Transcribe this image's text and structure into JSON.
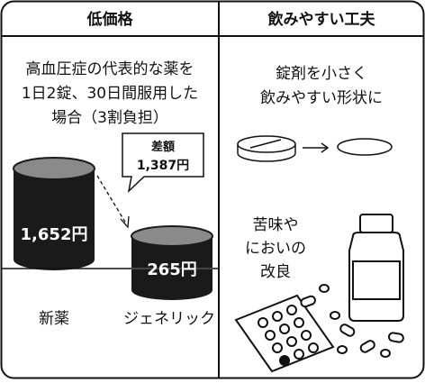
{
  "headers": {
    "left": "低価格",
    "right": "飲みやすい工夫"
  },
  "left": {
    "description": [
      "高血圧症の代表的な薬を",
      "1日2錠、30日間服用した",
      "場合（3割負担）"
    ],
    "difference": {
      "label": "差額",
      "amount": "1,387円"
    },
    "new_drug": {
      "price": "1,652円",
      "label": "新薬"
    },
    "generic": {
      "price": "265円",
      "label": "ジェネリック"
    }
  },
  "right": {
    "tablet_text": [
      "錠剤を小さく",
      "飲みやすい形状に"
    ],
    "taste_text": [
      "苦味や",
      "においの",
      "改良"
    ]
  }
}
